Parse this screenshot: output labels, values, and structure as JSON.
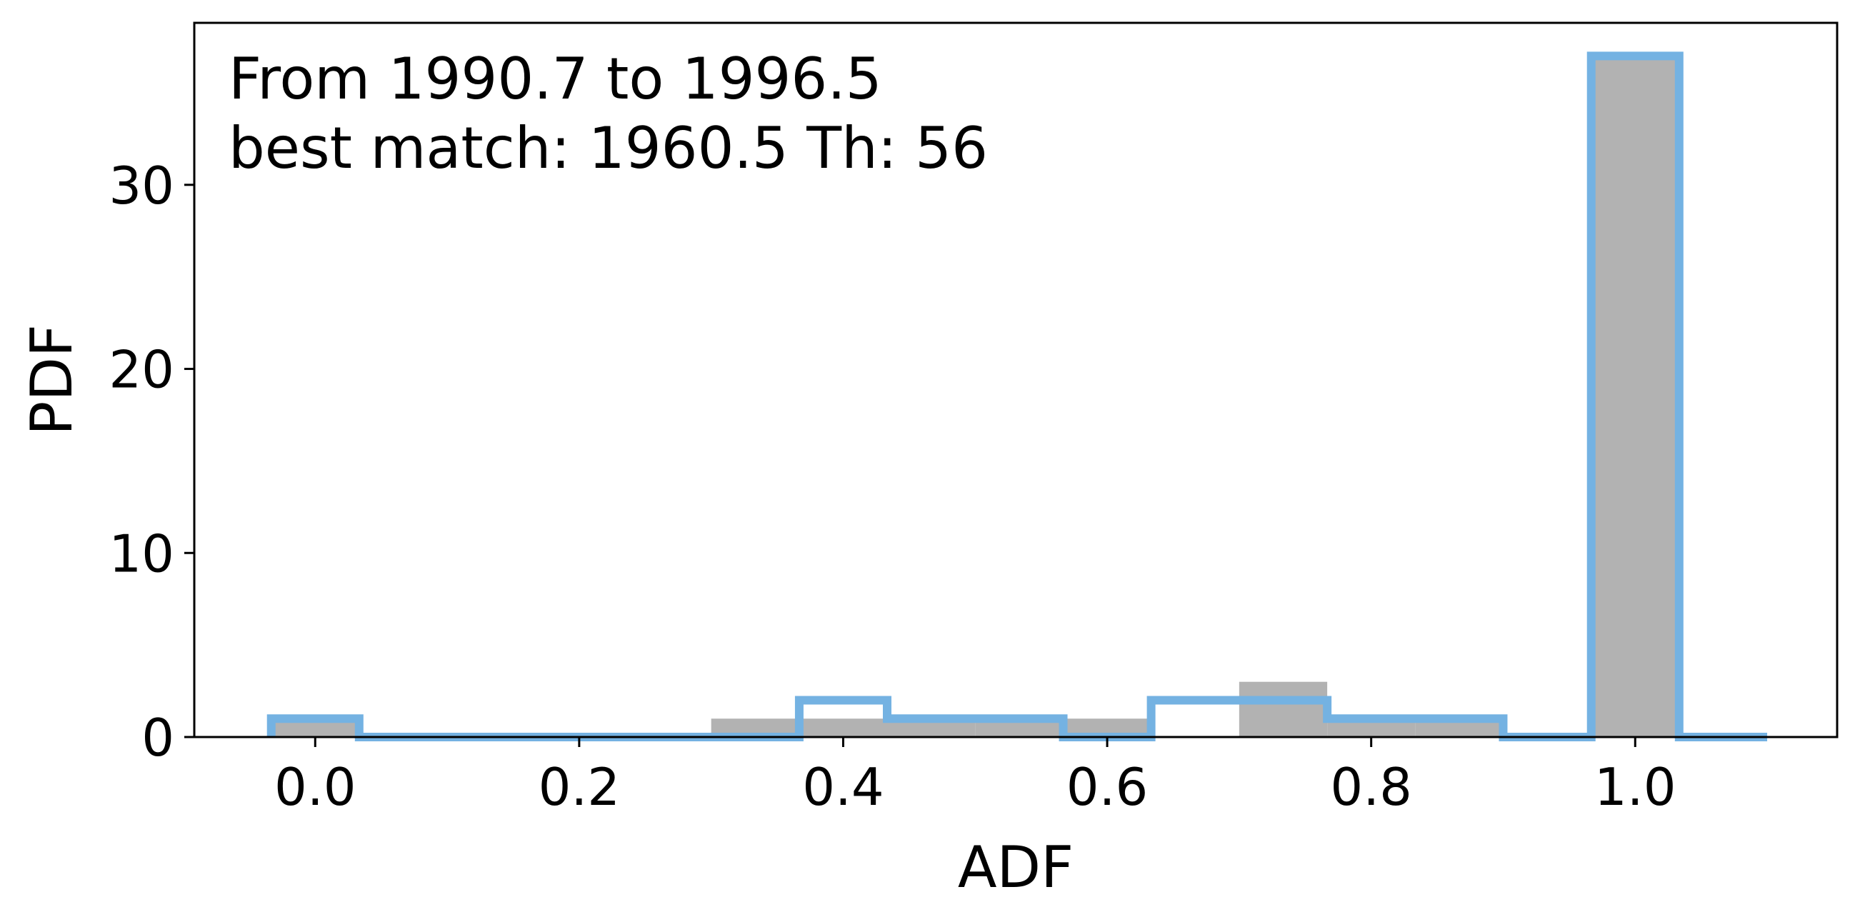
{
  "chart_data": {
    "type": "bar",
    "xlabel": "ADF",
    "ylabel": "PDF",
    "xlim": [
      -0.0916,
      1.153
    ],
    "ylim": [
      0,
      38.8
    ],
    "x_ticks": [
      0.0,
      0.2,
      0.4,
      0.6,
      0.8,
      1.0
    ],
    "x_tick_labels": [
      "0.0",
      "0.2",
      "0.4",
      "0.6",
      "0.8",
      "1.0"
    ],
    "y_ticks": [
      0,
      10,
      20,
      30
    ],
    "y_tick_labels": [
      "0",
      "10",
      "20",
      "30"
    ],
    "annotation_lines": [
      "From 1990.7 to 1996.5",
      "best match: 1960.5  Th: 56"
    ],
    "colors": {
      "bars": "#b2b2b2",
      "step": "#74b2e2"
    },
    "series": [
      {
        "style": "filled-bars",
        "bins": [
          {
            "x0": -0.0333,
            "x1": 0.0333,
            "value": 1
          },
          {
            "x0": 0.3,
            "x1": 0.3667,
            "value": 1
          },
          {
            "x0": 0.3667,
            "x1": 0.4333,
            "value": 1
          },
          {
            "x0": 0.4333,
            "x1": 0.5,
            "value": 1
          },
          {
            "x0": 0.5,
            "x1": 0.5667,
            "value": 1
          },
          {
            "x0": 0.5667,
            "x1": 0.6333,
            "value": 1
          },
          {
            "x0": 0.7,
            "x1": 0.7667,
            "value": 3
          },
          {
            "x0": 0.7667,
            "x1": 0.8333,
            "value": 1
          },
          {
            "x0": 0.8333,
            "x1": 0.9,
            "value": 1
          },
          {
            "x0": 0.9667,
            "x1": 1.0333,
            "value": 37
          }
        ]
      },
      {
        "style": "step-outline",
        "bins": [
          {
            "x0": -0.0333,
            "x1": 0.0333,
            "value": 1
          },
          {
            "x0": 0.0333,
            "x1": 0.3667,
            "value": 0
          },
          {
            "x0": 0.3667,
            "x1": 0.4333,
            "value": 2
          },
          {
            "x0": 0.4333,
            "x1": 0.5667,
            "value": 1
          },
          {
            "x0": 0.5667,
            "x1": 0.6333,
            "value": 0
          },
          {
            "x0": 0.6333,
            "x1": 0.7667,
            "value": 2
          },
          {
            "x0": 0.7667,
            "x1": 0.9,
            "value": 1
          },
          {
            "x0": 0.9,
            "x1": 0.9667,
            "value": 0
          },
          {
            "x0": 0.9667,
            "x1": 1.0333,
            "value": 37
          },
          {
            "x0": 1.0333,
            "x1": 1.1,
            "value": 0
          }
        ]
      }
    ]
  }
}
